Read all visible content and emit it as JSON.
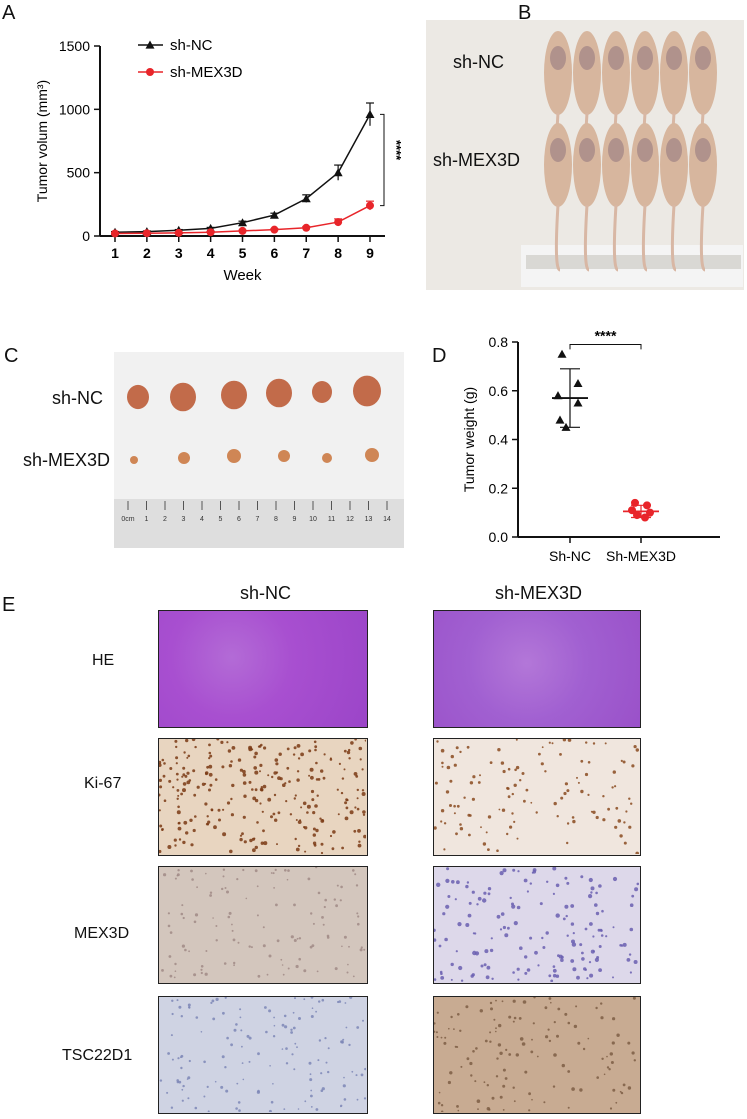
{
  "panels": {
    "a": "A",
    "b": "B",
    "c": "C",
    "d": "D",
    "e": "E"
  },
  "chart_data": [
    {
      "type": "line",
      "panel": "A",
      "xlabel": "Week",
      "ylabel": "Tumor volum (mm³)",
      "x": [
        1,
        2,
        3,
        4,
        5,
        6,
        7,
        8,
        9
      ],
      "ylim": [
        0,
        1500
      ],
      "yticks": [
        0,
        500,
        1000,
        1500
      ],
      "series": [
        {
          "name": "sh-NC",
          "color": "#111111",
          "marker": "triangle",
          "values": [
            30,
            35,
            45,
            60,
            105,
            165,
            295,
            500,
            960
          ],
          "errors": [
            5,
            5,
            6,
            8,
            12,
            15,
            30,
            60,
            90
          ]
        },
        {
          "name": "sh-MEX3D",
          "color": "#e8252a",
          "marker": "circle",
          "values": [
            20,
            22,
            25,
            30,
            40,
            50,
            65,
            110,
            240
          ],
          "errors": [
            3,
            3,
            4,
            5,
            6,
            8,
            10,
            25,
            35
          ]
        }
      ],
      "significance": "****"
    },
    {
      "type": "scatter",
      "panel": "D",
      "ylabel": "Tumor weight (g)",
      "categories": [
        "Sh-NC",
        "Sh-MEX3D"
      ],
      "ylim": [
        0,
        0.8
      ],
      "yticks": [
        0.0,
        0.2,
        0.4,
        0.6,
        0.8
      ],
      "series": [
        {
          "name": "Sh-NC",
          "color": "#111111",
          "marker": "triangle",
          "values": [
            0.75,
            0.63,
            0.58,
            0.55,
            0.48,
            0.45
          ],
          "mean": 0.57,
          "sd": [
            0.45,
            0.69
          ]
        },
        {
          "name": "Sh-MEX3D",
          "color": "#e8252a",
          "marker": "circle",
          "values": [
            0.14,
            0.13,
            0.11,
            0.1,
            0.09,
            0.08
          ],
          "mean": 0.105,
          "sd": [
            0.08,
            0.13
          ]
        }
      ],
      "significance": "****"
    }
  ],
  "panel_b": {
    "labels": [
      "sh-NC",
      "sh-MEX3D"
    ]
  },
  "panel_c": {
    "labels": [
      "sh-NC",
      "sh-MEX3D"
    ],
    "ruler_ticks": [
      "0cm",
      "1",
      "2",
      "3",
      "4",
      "5",
      "6",
      "7",
      "8",
      "9",
      "10",
      "11",
      "12",
      "13",
      "14"
    ]
  },
  "panel_e": {
    "columns": [
      "sh-NC",
      "sh-MEX3D"
    ],
    "rows": [
      "HE",
      "Ki-67",
      "MEX3D",
      "TSC22D1"
    ]
  }
}
